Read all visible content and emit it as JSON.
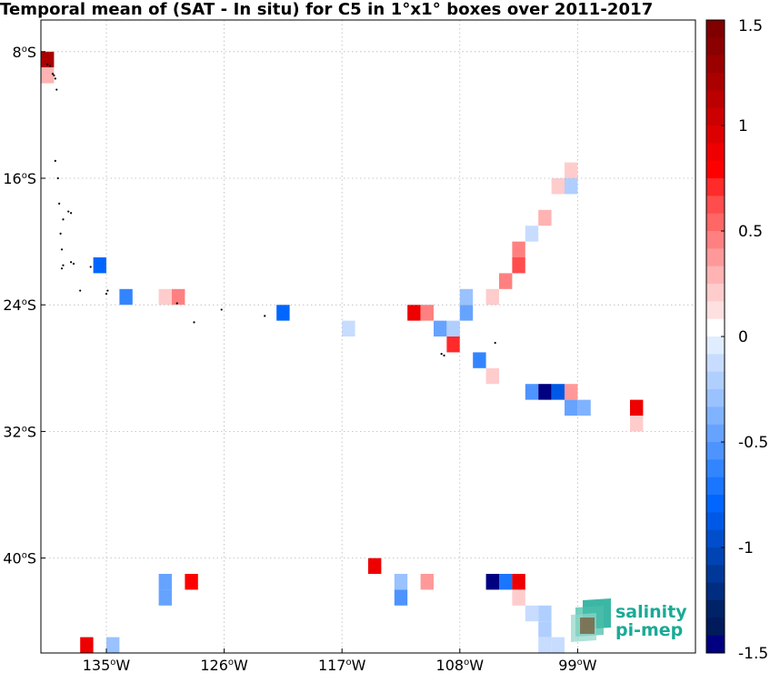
{
  "title": "Temporal mean of (SAT - In situ) for C5 in 1°x1° boxes over 2011-2017",
  "map": {
    "lon_range": [
      -140,
      -90
    ],
    "lat_range": [
      -46,
      -6
    ],
    "lat_ticks": [
      {
        "value": -8,
        "label": "8",
        "deg": "o",
        "hemi": "S"
      },
      {
        "value": -16,
        "label": "16",
        "deg": "o",
        "hemi": "S"
      },
      {
        "value": -24,
        "label": "24",
        "deg": "o",
        "hemi": "S"
      },
      {
        "value": -32,
        "label": "32",
        "deg": "o",
        "hemi": "S"
      },
      {
        "value": -40,
        "label": "40",
        "deg": "o",
        "hemi": "S"
      }
    ],
    "lon_ticks": [
      {
        "value": -135,
        "label": "135",
        "deg": "o",
        "hemi": "W"
      },
      {
        "value": -126,
        "label": "126",
        "deg": "o",
        "hemi": "W"
      },
      {
        "value": -117,
        "label": "117",
        "deg": "o",
        "hemi": "W"
      },
      {
        "value": -108,
        "label": "108",
        "deg": "o",
        "hemi": "W"
      },
      {
        "value": -99,
        "label": "99",
        "deg": "o",
        "hemi": "W"
      }
    ],
    "grid": true,
    "cells": [
      {
        "lon": -139.5,
        "lat": -8.5,
        "v": 1.2
      },
      {
        "lon": -139.5,
        "lat": -9.5,
        "v": 0.3
      },
      {
        "lon": -135.5,
        "lat": -21.5,
        "v": -0.8
      },
      {
        "lon": -133.5,
        "lat": -23.5,
        "v": -0.6
      },
      {
        "lon": -130.5,
        "lat": -23.5,
        "v": 0.2
      },
      {
        "lon": -129.5,
        "lat": -23.5,
        "v": 0.5
      },
      {
        "lon": -121.5,
        "lat": -24.5,
        "v": -0.8
      },
      {
        "lon": -116.5,
        "lat": -25.5,
        "v": -0.1
      },
      {
        "lon": -111.5,
        "lat": -24.5,
        "v": 0.9
      },
      {
        "lon": -110.5,
        "lat": -24.5,
        "v": 0.5
      },
      {
        "lon": -109.5,
        "lat": -25.5,
        "v": -0.45
      },
      {
        "lon": -108.5,
        "lat": -25.5,
        "v": -0.2
      },
      {
        "lon": -108.5,
        "lat": -26.5,
        "v": 0.7
      },
      {
        "lon": -107.5,
        "lat": -23.5,
        "v": -0.3
      },
      {
        "lon": -107.5,
        "lat": -24.5,
        "v": -0.45
      },
      {
        "lon": -106.5,
        "lat": -27.5,
        "v": -0.6
      },
      {
        "lon": -105.5,
        "lat": -23.5,
        "v": 0.2
      },
      {
        "lon": -105.5,
        "lat": -28.5,
        "v": 0.2
      },
      {
        "lon": -104.5,
        "lat": -22.5,
        "v": 0.5
      },
      {
        "lon": -103.5,
        "lat": -20.5,
        "v": 0.5
      },
      {
        "lon": -103.5,
        "lat": -21.5,
        "v": 0.6
      },
      {
        "lon": -102.5,
        "lat": -19.5,
        "v": -0.15
      },
      {
        "lon": -102.5,
        "lat": -29.5,
        "v": -0.5
      },
      {
        "lon": -101.5,
        "lat": -29.5,
        "v": -1.5
      },
      {
        "lon": -101.5,
        "lat": -18.5,
        "v": 0.3
      },
      {
        "lon": -100.5,
        "lat": -29.5,
        "v": -0.9
      },
      {
        "lon": -100.5,
        "lat": -16.5,
        "v": 0.2
      },
      {
        "lon": -99.5,
        "lat": -29.5,
        "v": 0.4
      },
      {
        "lon": -99.5,
        "lat": -15.5,
        "v": 0.2
      },
      {
        "lon": -99.5,
        "lat": -16.5,
        "v": -0.2
      },
      {
        "lon": -99.5,
        "lat": -30.5,
        "v": -0.45
      },
      {
        "lon": -98.5,
        "lat": -30.5,
        "v": -0.4
      },
      {
        "lon": -94.5,
        "lat": -30.5,
        "v": 0.9
      },
      {
        "lon": -94.5,
        "lat": -31.5,
        "v": 0.2
      },
      {
        "lon": -134.5,
        "lat": -45.5,
        "v": -0.3
      },
      {
        "lon": -136.5,
        "lat": -45.5,
        "v": 0.9
      },
      {
        "lon": -130.5,
        "lat": -41.5,
        "v": -0.45
      },
      {
        "lon": -130.5,
        "lat": -42.5,
        "v": -0.45
      },
      {
        "lon": -128.5,
        "lat": -41.5,
        "v": 0.8
      },
      {
        "lon": -114.5,
        "lat": -40.5,
        "v": 0.9
      },
      {
        "lon": -112.5,
        "lat": -41.5,
        "v": -0.25
      },
      {
        "lon": -112.5,
        "lat": -42.5,
        "v": -0.5
      },
      {
        "lon": -110.5,
        "lat": -41.5,
        "v": 0.4
      },
      {
        "lon": -105.5,
        "lat": -41.5,
        "v": -1.5
      },
      {
        "lon": -104.5,
        "lat": -41.5,
        "v": -0.7
      },
      {
        "lon": -103.5,
        "lat": -41.5,
        "v": 0.9
      },
      {
        "lon": -103.5,
        "lat": -42.5,
        "v": 0.25
      },
      {
        "lon": -102.5,
        "lat": -43.5,
        "v": -0.15
      },
      {
        "lon": -101.5,
        "lat": -43.5,
        "v": -0.2
      },
      {
        "lon": -101.5,
        "lat": -44.5,
        "v": -0.2
      },
      {
        "lon": -101.5,
        "lat": -45.5,
        "v": -0.1
      },
      {
        "lon": -100.5,
        "lat": -45.5,
        "v": -0.15
      }
    ],
    "islands": [
      [
        -139.5,
        -8.8
      ],
      [
        -139.3,
        -8.9
      ],
      [
        -139.1,
        -9.4
      ],
      [
        -139.0,
        -9.5
      ],
      [
        -138.9,
        -9.7
      ],
      [
        -138.8,
        -10.4
      ],
      [
        -138.9,
        -14.9
      ],
      [
        -138.7,
        -16.0
      ],
      [
        -138.6,
        -17.6
      ],
      [
        -137.9,
        -18.1
      ],
      [
        -137.7,
        -18.2
      ],
      [
        -138.3,
        -18.6
      ],
      [
        -138.5,
        -19.5
      ],
      [
        -138.4,
        -20.5
      ],
      [
        -138.3,
        -21.5
      ],
      [
        -138.4,
        -21.7
      ],
      [
        -137.7,
        -21.3
      ],
      [
        -137.5,
        -21.4
      ],
      [
        -136.2,
        -21.6
      ],
      [
        -135.0,
        -23.3
      ],
      [
        -134.9,
        -23.1
      ],
      [
        -137.0,
        -23.1
      ],
      [
        -129.6,
        -23.9
      ],
      [
        -128.3,
        -25.1
      ],
      [
        -126.2,
        -24.3
      ],
      [
        -122.9,
        -24.7
      ],
      [
        -109.4,
        -27.1
      ],
      [
        -109.2,
        -27.2
      ],
      [
        -105.3,
        -26.4
      ]
    ]
  },
  "colorbar": {
    "min": -1.5,
    "max": 1.5,
    "ticks": [
      1.5,
      1,
      0.5,
      0,
      -0.5,
      -1,
      -1.5
    ],
    "tick_labels": [
      "1.5",
      "1",
      "0.5",
      "0",
      "-0.5",
      "-1",
      "-1.5"
    ],
    "colors_top_to_bottom": [
      "#800000",
      "#8b0000",
      "#9a0000",
      "#aa0000",
      "#bb0000",
      "#cc0000",
      "#dd0000",
      "#ee0000",
      "#ff0000",
      "#ff2a2a",
      "#ff4d4d",
      "#ff6666",
      "#ff8080",
      "#ff9999",
      "#ffb3b3",
      "#ffcccc",
      "#ffe0e0",
      "#ffffff",
      "#e0ecff",
      "#c7dcff",
      "#b0cfff",
      "#99c2ff",
      "#80b3ff",
      "#66a3ff",
      "#4d94ff",
      "#3385ff",
      "#1a75ff",
      "#0066ff",
      "#0059e6",
      "#004ecc",
      "#0043b3",
      "#003899",
      "#002d80",
      "#002266",
      "#001a5c",
      "#000080"
    ]
  },
  "logo": {
    "line1": "salinity",
    "line2": "pi-mep",
    "text_color": "#1aaa96"
  }
}
